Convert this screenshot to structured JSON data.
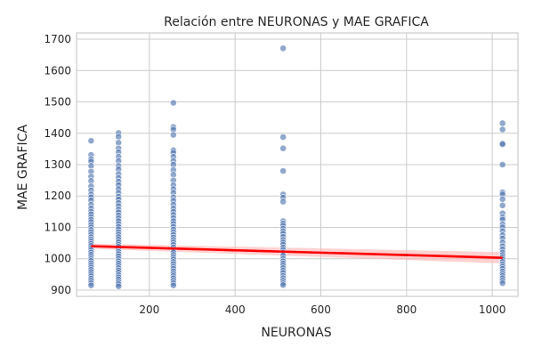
{
  "chart_data": {
    "type": "scatter",
    "title": "Relación entre NEURONAS y MAE GRAFICA",
    "xlabel": "NEURONAS",
    "ylabel": "MAE GRAFICA",
    "xlim": [
      30,
      1060
    ],
    "ylim": [
      880,
      1720
    ],
    "x_ticks": [
      200,
      400,
      600,
      800,
      1000
    ],
    "y_ticks": [
      900,
      1000,
      1100,
      1200,
      1300,
      1400,
      1500,
      1600,
      1700
    ],
    "grid": true,
    "legend": "none",
    "colors": {
      "points": "#4c72b0",
      "regression": "#ff0000",
      "band": "#ffb3b3",
      "grid": "#cccccc",
      "frame": "#cccccc"
    },
    "series": [
      {
        "x": 64,
        "y": [
          1376,
          1331,
          1318,
          1310,
          1296,
          1278,
          1262,
          1248,
          1231,
          1218,
          1205,
          1196,
          1186,
          1172,
          1160,
          1150,
          1142,
          1133,
          1125,
          1117,
          1108,
          1100,
          1092,
          1085,
          1077,
          1069,
          1062,
          1055,
          1048,
          1041,
          1034,
          1027,
          1020,
          1013,
          1006,
          999,
          993,
          986,
          979,
          972,
          965,
          958,
          951,
          944,
          937,
          930,
          922,
          915
        ]
      },
      {
        "x": 128,
        "y": [
          1401,
          1389,
          1370,
          1352,
          1340,
          1325,
          1312,
          1296,
          1285,
          1270,
          1258,
          1246,
          1235,
          1222,
          1210,
          1198,
          1189,
          1178,
          1168,
          1157,
          1148,
          1138,
          1129,
          1120,
          1111,
          1102,
          1094,
          1085,
          1077,
          1069,
          1061,
          1053,
          1045,
          1038,
          1030,
          1022,
          1015,
          1008,
          1000,
          992,
          985,
          978,
          970,
          963,
          956,
          948,
          941,
          934,
          926,
          919,
          912
        ]
      },
      {
        "x": 256,
        "y": [
          1497,
          1420,
          1412,
          1395,
          1346,
          1338,
          1325,
          1312,
          1300,
          1283,
          1268,
          1250,
          1235,
          1222,
          1210,
          1196,
          1185,
          1172,
          1160,
          1150,
          1140,
          1130,
          1120,
          1111,
          1102,
          1093,
          1084,
          1076,
          1068,
          1060,
          1052,
          1044,
          1036,
          1028,
          1020,
          1012,
          1005,
          998,
          990,
          983,
          975,
          968,
          960,
          952,
          945,
          938,
          930,
          922,
          915
        ]
      },
      {
        "x": 512,
        "y": [
          1671,
          1388,
          1352,
          1280,
          1205,
          1195,
          1182,
          1120,
          1112,
          1105,
          1096,
          1088,
          1080,
          1070,
          1060,
          1052,
          1045,
          1036,
          1028,
          1020,
          1010,
          1000,
          992,
          985,
          978,
          970,
          962,
          955,
          946,
          938,
          930,
          922,
          916
        ]
      },
      {
        "x": 1024,
        "y": [
          1432,
          1412,
          1368,
          1365,
          1300,
          1212,
          1205,
          1190,
          1170,
          1145,
          1132,
          1125,
          1110,
          1100,
          1088,
          1075,
          1065,
          1052,
          1040,
          1030,
          1020,
          1012,
          1005,
          998,
          990,
          982,
          975,
          968,
          960,
          952,
          945,
          938,
          930,
          922
        ]
      }
    ],
    "regression": {
      "x": [
        64,
        1024
      ],
      "y": [
        1040,
        1003
      ],
      "band_lo": [
        1032,
        985
      ],
      "band_hi": [
        1048,
        1021
      ]
    }
  }
}
